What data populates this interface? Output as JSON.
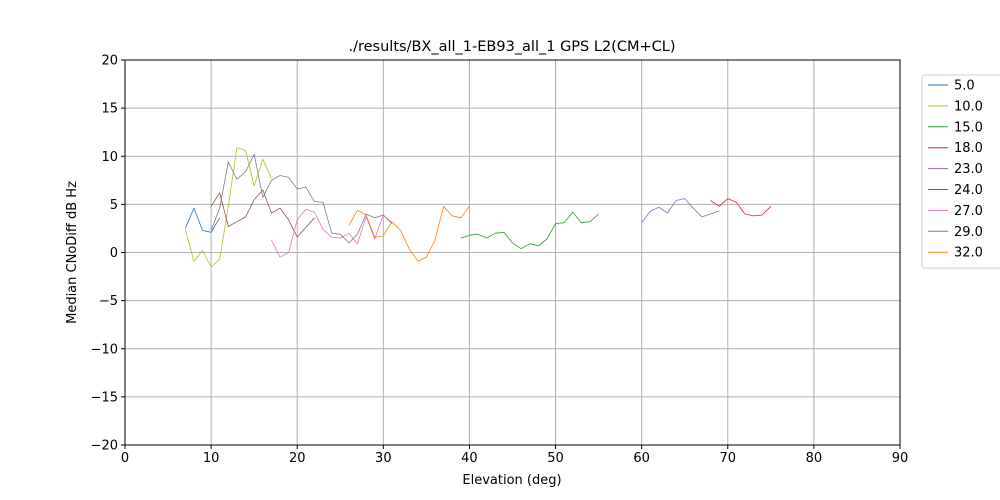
{
  "chart_data": {
    "type": "line",
    "title": "./results/BX_all_1-EB93_all_1 GPS L2(CM+CL)",
    "xlabel": "Elevation (deg)",
    "ylabel": "Median CNoDiff dB Hz",
    "xlim": [
      0,
      90
    ],
    "ylim": [
      -20,
      20
    ],
    "xticks": [
      0,
      10,
      20,
      30,
      40,
      50,
      60,
      70,
      80,
      90
    ],
    "yticks": [
      -20,
      -15,
      -10,
      -5,
      0,
      5,
      10,
      15,
      20
    ],
    "grid": true,
    "legend_position": "outside-right",
    "series": [
      {
        "name": "5.0",
        "color": "#1f77b4",
        "x": [
          7,
          8,
          9,
          10,
          11
        ],
        "y": [
          2.5,
          4.6,
          2.3,
          2.1,
          3.6
        ]
      },
      {
        "name": "10.0",
        "color": "#bcbd22",
        "x": [
          7,
          8,
          9,
          10,
          11,
          12,
          13,
          14,
          15,
          16,
          17
        ],
        "y": [
          2.4,
          -0.9,
          0.2,
          -1.5,
          -0.7,
          4.8,
          10.9,
          10.6,
          6.9,
          9.7,
          7.7
        ]
      },
      {
        "name": "15.0",
        "color": "#2ca02c",
        "x": [
          39,
          40,
          41,
          42,
          43,
          44,
          45,
          46,
          47,
          48,
          49,
          50,
          51,
          52,
          53,
          54,
          55
        ],
        "y": [
          1.5,
          1.8,
          1.9,
          1.5,
          2.0,
          2.1,
          1.0,
          0.4,
          0.9,
          0.7,
          1.4,
          3.0,
          3.1,
          4.2,
          3.1,
          3.2,
          4.0
        ]
      },
      {
        "name": "18.0",
        "color": "#d62728",
        "x": [
          68,
          69,
          70,
          71,
          72,
          73,
          74,
          75
        ],
        "y": [
          5.4,
          4.8,
          5.6,
          5.2,
          4.0,
          3.8,
          3.9,
          4.8
        ]
      },
      {
        "name": "23.0",
        "color": "#9467bd",
        "x": [
          60,
          61,
          62,
          63,
          64,
          65,
          66,
          67,
          68,
          69
        ],
        "y": [
          3.1,
          4.3,
          4.7,
          4.1,
          5.4,
          5.6,
          4.6,
          3.7,
          4.0,
          4.3
        ]
      },
      {
        "name": "24.0",
        "color": "#8c564b",
        "x": [
          10,
          11,
          12,
          13,
          14,
          15,
          16,
          17,
          18,
          19,
          20,
          21,
          22
        ],
        "y": [
          4.8,
          6.2,
          2.7,
          3.2,
          3.7,
          5.5,
          6.5,
          4.1,
          4.6,
          3.4,
          1.6,
          2.6,
          3.6
        ]
      },
      {
        "name": "27.0",
        "color": "#e377c2",
        "x": [
          17,
          18,
          19,
          20,
          21,
          22,
          23,
          24,
          25,
          26,
          27,
          28,
          29,
          30,
          31
        ],
        "y": [
          1.3,
          -0.5,
          0.0,
          3.4,
          4.5,
          4.2,
          2.4,
          1.6,
          1.5,
          2.0,
          0.9,
          3.7,
          1.4,
          3.9,
          3.1
        ]
      },
      {
        "name": "29.0",
        "color": "#7f7f7f",
        "x": [
          10,
          11,
          12,
          13,
          14,
          15,
          16,
          17,
          18,
          19,
          20,
          21,
          22,
          23,
          24,
          25,
          26,
          27,
          28,
          29,
          30,
          31
        ],
        "y": [
          2.3,
          4.6,
          9.4,
          7.6,
          8.4,
          10.2,
          5.7,
          7.5,
          8.0,
          7.8,
          6.6,
          6.8,
          5.3,
          5.2,
          2.0,
          1.9,
          1.0,
          1.9,
          4.0,
          3.6,
          3.9,
          3.0
        ]
      },
      {
        "name": "32.0",
        "color": "#ff7f0e",
        "x": [
          26,
          27,
          28,
          29,
          30,
          31,
          32,
          33,
          34,
          35,
          36,
          37,
          38,
          39,
          40
        ],
        "y": [
          2.8,
          4.4,
          3.9,
          1.6,
          1.7,
          3.2,
          2.3,
          0.4,
          -0.9,
          -0.5,
          1.3,
          4.8,
          3.8,
          3.6,
          4.8
        ]
      }
    ]
  }
}
